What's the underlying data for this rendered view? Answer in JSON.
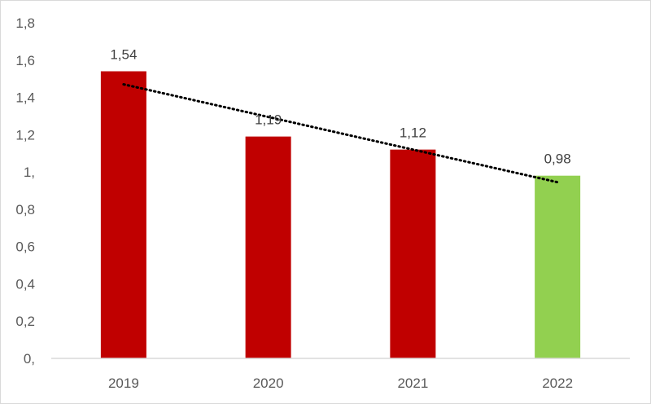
{
  "chart_data": {
    "type": "bar",
    "categories": [
      "2019",
      "2020",
      "2021",
      "2022"
    ],
    "values": [
      1.54,
      1.19,
      1.12,
      0.98
    ],
    "data_labels": [
      "1,54",
      "1,19",
      "1,12",
      "0,98"
    ],
    "bar_colors": [
      "#c00000",
      "#c00000",
      "#c00000",
      "#92d050"
    ],
    "ylim": [
      0,
      1.8
    ],
    "y_ticks": [
      0,
      0.2,
      0.4,
      0.6,
      0.8,
      1.0,
      1.2,
      1.4,
      1.6,
      1.8
    ],
    "y_tick_labels": [
      "0,",
      "0,2",
      "0,4",
      "0,6",
      "0,8",
      "1,",
      "1,2",
      "1,4",
      "1,6",
      "1,8"
    ],
    "title": "",
    "xlabel": "",
    "ylabel": "",
    "grid": false,
    "legend": "none",
    "trendline": {
      "type": "linear",
      "style": "dotted",
      "color": "#000000"
    },
    "axis_color": "#d9d9d9"
  }
}
